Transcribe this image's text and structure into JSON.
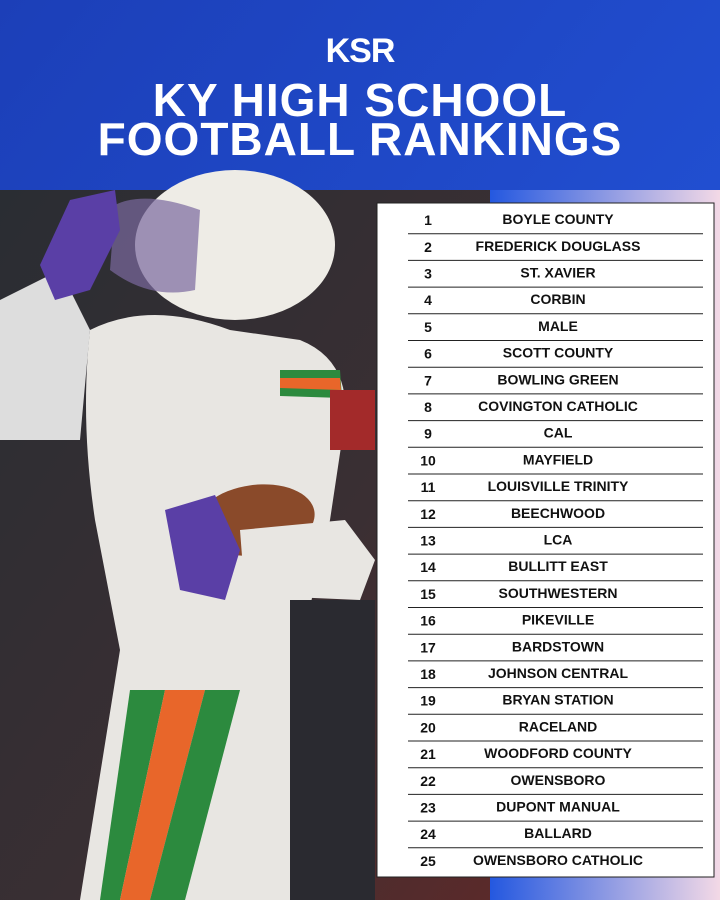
{
  "header": {
    "logo": "KSR",
    "title_lines": [
      "KY HIGH SCHOOL",
      "FOOTBALL RANKINGS"
    ]
  },
  "table": {
    "rows": [
      {
        "rank": 1,
        "team": "BOYLE COUNTY"
      },
      {
        "rank": 2,
        "team": "FREDERICK DOUGLASS"
      },
      {
        "rank": 3,
        "team": "ST. XAVIER"
      },
      {
        "rank": 4,
        "team": "CORBIN"
      },
      {
        "rank": 5,
        "team": "MALE"
      },
      {
        "rank": 6,
        "team": "SCOTT COUNTY"
      },
      {
        "rank": 7,
        "team": "BOWLING GREEN"
      },
      {
        "rank": 8,
        "team": "COVINGTON CATHOLIC"
      },
      {
        "rank": 9,
        "team": "CAL"
      },
      {
        "rank": 10,
        "team": "MAYFIELD"
      },
      {
        "rank": 11,
        "team": "LOUISVILLE TRINITY"
      },
      {
        "rank": 12,
        "team": "BEECHWOOD"
      },
      {
        "rank": 13,
        "team": "LCA"
      },
      {
        "rank": 14,
        "team": "BULLITT EAST"
      },
      {
        "rank": 15,
        "team": "SOUTHWESTERN"
      },
      {
        "rank": 16,
        "team": "PIKEVILLE"
      },
      {
        "rank": 17,
        "team": "BARDSTOWN"
      },
      {
        "rank": 18,
        "team": "JOHNSON CENTRAL"
      },
      {
        "rank": 19,
        "team": "BRYAN STATION"
      },
      {
        "rank": 20,
        "team": "RACELAND"
      },
      {
        "rank": 21,
        "team": "WOODFORD COUNTY"
      },
      {
        "rank": 22,
        "team": "OWENSBORO"
      },
      {
        "rank": 23,
        "team": "DUPONT MANUAL"
      },
      {
        "rank": 24,
        "team": "BALLARD"
      },
      {
        "rank": 25,
        "team": "OWENSBORO CATHOLIC"
      }
    ]
  }
}
